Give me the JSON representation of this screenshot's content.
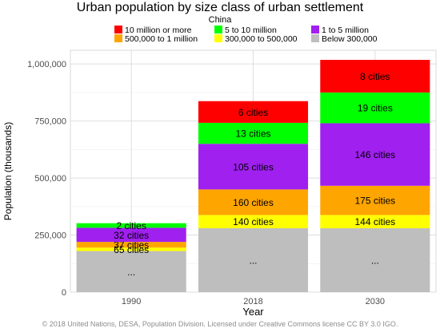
{
  "chart_data": {
    "type": "bar",
    "stacked": true,
    "title": "Urban population by size class of urban settlement",
    "subtitle": "China",
    "xlabel": "Year",
    "ylabel": "Population (thousands)",
    "categories": [
      "1990",
      "2018",
      "2030"
    ],
    "ylim": [
      0,
      1060000
    ],
    "yticks": [
      0,
      250000,
      500000,
      750000,
      1000000
    ],
    "ytick_labels": [
      "0",
      "250,000",
      "500,000",
      "750,000",
      "1,000,000"
    ],
    "grid": true,
    "legend_position": "top",
    "series": [
      {
        "name": "Below 300,000",
        "color": "#bebebe",
        "values": [
          180000,
          280000,
          280000
        ],
        "labels": [
          "...",
          "...",
          "..."
        ]
      },
      {
        "name": "300,000 to 500,000",
        "color": "#ffff00",
        "values": [
          15000,
          58000,
          58000
        ],
        "labels": [
          "",
          "140 cities",
          "144 cities"
        ]
      },
      {
        "name": "500,000 to 1 million",
        "color": "#ffa500",
        "values": [
          25000,
          112000,
          128000
        ],
        "labels": [
          "37 cities",
          "160 cities",
          "175 cities"
        ]
      },
      {
        "name": "1 to 5 million",
        "color": "#a020f0",
        "values": [
          62000,
          200000,
          274000
        ],
        "labels": [
          "32 cities",
          "105 cities",
          "146 cities"
        ]
      },
      {
        "name": "5 to 10 million",
        "color": "#00ff00",
        "values": [
          20000,
          92000,
          135000
        ],
        "labels": [
          "2 cities",
          "13 cities",
          "19 cities"
        ]
      },
      {
        "name": "10 million or more",
        "color": "#ff0000",
        "values": [
          0,
          95000,
          143000
        ],
        "labels": [
          "",
          "6 cities",
          "8 cities"
        ]
      }
    ],
    "extra_labels": [
      {
        "category": "1990",
        "series": "300,000 to 500,000",
        "text": "65 cities"
      }
    ]
  },
  "legend": [
    {
      "label": "10 million or more",
      "color": "#ff0000"
    },
    {
      "label": "5 to 10 million",
      "color": "#00ff00"
    },
    {
      "label": "1 to 5 million",
      "color": "#a020f0"
    },
    {
      "label": "500,000 to 1 million",
      "color": "#ffa500"
    },
    {
      "label": "300,000 to 500,000",
      "color": "#ffff00"
    },
    {
      "label": "Below 300,000",
      "color": "#bebebe"
    }
  ],
  "footer": "© 2018 United Nations, DESA, Population Division. Licensed under Creative Commons license CC BY 3.0 IGO."
}
